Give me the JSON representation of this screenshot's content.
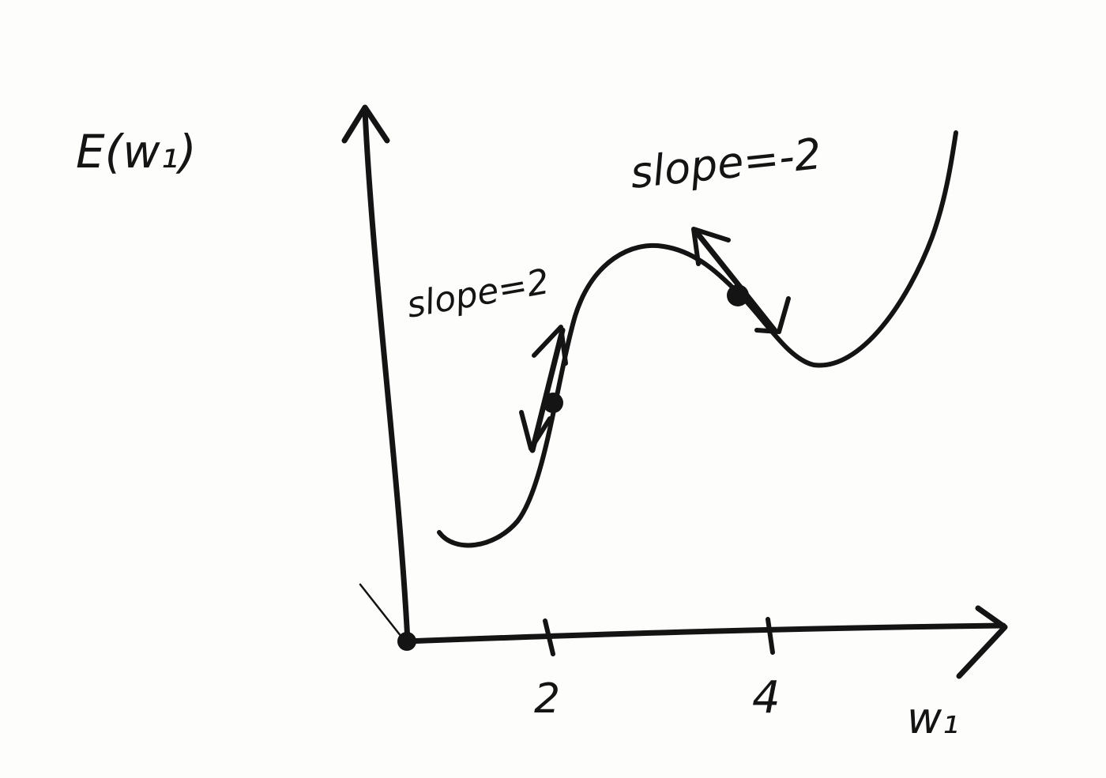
{
  "y_axis_label": "E(w₁)",
  "x_axis_label": "w₁",
  "ticks": [
    {
      "label": "2",
      "value": 2
    },
    {
      "label": "4",
      "value": 4
    }
  ],
  "annotations": {
    "left_slope": "slope=2",
    "right_slope": "slope=-2"
  },
  "colors": {
    "ink": "#141414",
    "paper": "#fdfdfb"
  }
}
